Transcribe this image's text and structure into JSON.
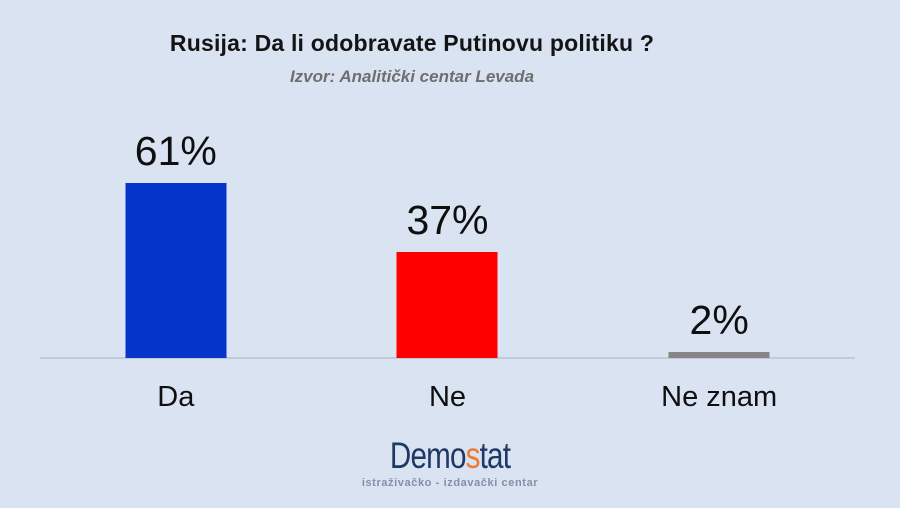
{
  "title": "Rusija: Da li odobravate Putinovu politiku ?",
  "subtitle": "Izvor: Analitički centar Levada",
  "chart_data": {
    "type": "bar",
    "title": "Rusija: Da li odobravate Putinovu politiku ?",
    "source_note": "Izvor: Analitički centar Levada",
    "categories": [
      "Da",
      "Ne",
      "Ne znam"
    ],
    "values": [
      61,
      37,
      2
    ],
    "value_labels": [
      "61%",
      "37%",
      "2%"
    ],
    "bar_colors": [
      "#0534cb",
      "#fe0000",
      "#868686"
    ],
    "ylim": [
      0,
      70
    ],
    "grid": false,
    "legend": false,
    "axis_line_color": "#c3cad4",
    "background_color": "#dae3f2",
    "text_color": "#0f0f0f"
  },
  "footer": {
    "logo": {
      "pre": "Demo",
      "accent": "s",
      "post": "tat",
      "tagline": "istraživačko - izdavački  centar",
      "navy_color": "#1f3864",
      "accent_color": "#ed7d31",
      "tagline_color": "#8290a8"
    }
  }
}
